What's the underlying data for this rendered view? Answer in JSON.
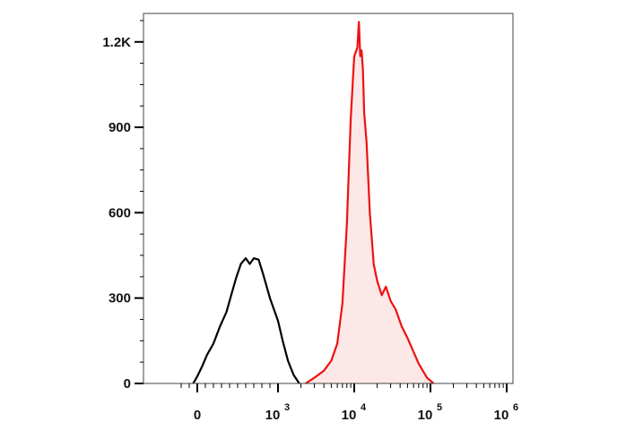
{
  "chart_data": {
    "type": "area",
    "title": "",
    "xlabel": "",
    "ylabel": "",
    "x_scale": "biexponential (log above 10^3)",
    "xlim": [
      -200,
      1000000
    ],
    "ylim": [
      0,
      1300
    ],
    "grid": false,
    "legend": "none",
    "y_ticks": [
      {
        "value": 0,
        "label": "0"
      },
      {
        "value": 300,
        "label": "300"
      },
      {
        "value": 600,
        "label": "600"
      },
      {
        "value": 900,
        "label": "900"
      },
      {
        "value": 1200,
        "label": "1.2K"
      }
    ],
    "x_ticks": [
      {
        "value": 0,
        "label": "0",
        "exp": ""
      },
      {
        "value": 1000,
        "label": "10",
        "exp": "3"
      },
      {
        "value": 10000,
        "label": "10",
        "exp": "4"
      },
      {
        "value": 100000,
        "label": "10",
        "exp": "5"
      },
      {
        "value": 1000000,
        "label": "10",
        "exp": "6"
      }
    ],
    "series": [
      {
        "color": "#000000",
        "fill": "none",
        "x": [
          -50,
          0,
          60,
          120,
          200,
          280,
          360,
          420,
          480,
          540,
          600,
          650,
          700,
          760,
          820,
          900,
          1000,
          1150,
          1350,
          1600,
          1900
        ],
        "y": [
          0,
          25,
          60,
          100,
          140,
          200,
          250,
          310,
          370,
          420,
          440,
          420,
          440,
          435,
          380,
          300,
          220,
          150,
          80,
          30,
          0
        ]
      },
      {
        "color": "#ee1111",
        "fill": "#fde8e8",
        "x": [
          2300,
          3000,
          4000,
          5000,
          6000,
          7000,
          8000,
          9000,
          10000,
          11000,
          11500,
          12000,
          12500,
          13000,
          13500,
          14500,
          16000,
          18000,
          20000,
          23000,
          26000,
          30000,
          35000,
          42000,
          50000,
          58000,
          70000,
          90000,
          110000
        ],
        "y": [
          0,
          20,
          45,
          80,
          140,
          280,
          560,
          930,
          1150,
          1180,
          1270,
          1150,
          1170,
          1100,
          950,
          850,
          600,
          420,
          360,
          310,
          340,
          290,
          260,
          200,
          160,
          120,
          70,
          20,
          0
        ]
      }
    ]
  }
}
